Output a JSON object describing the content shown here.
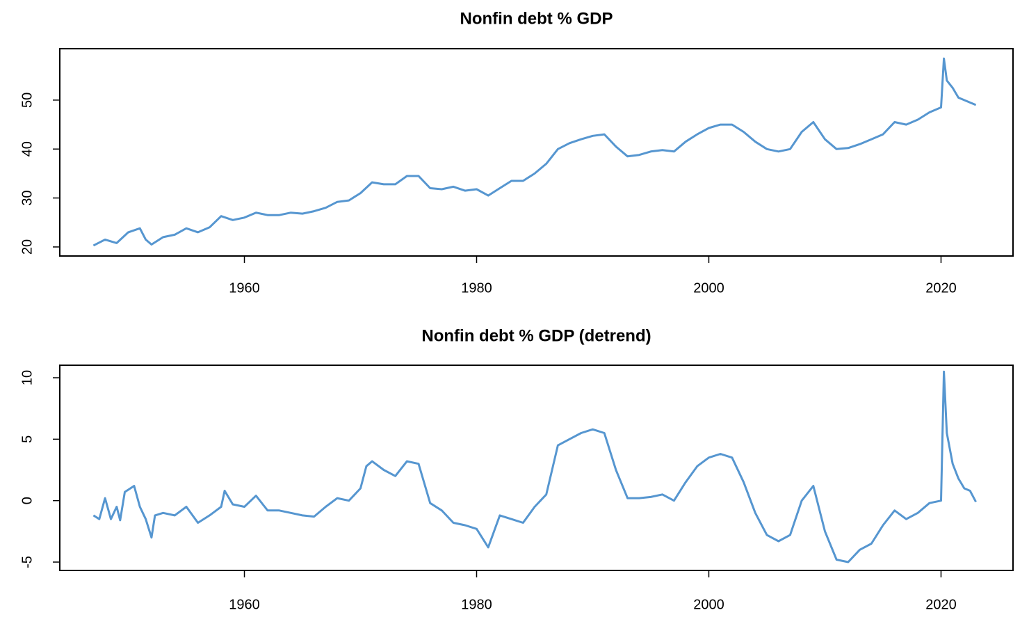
{
  "chart_data": [
    {
      "type": "line",
      "title": "Nonfin debt % GDP",
      "xlim": [
        1944.1,
        2026.2
      ],
      "xticks": [
        1960,
        1980,
        2000,
        2020
      ],
      "ylim": [
        18.15,
        60.5
      ],
      "yticks": [
        20,
        30,
        40,
        50
      ],
      "series": [
        {
          "color": "#5696d0",
          "x": [
            1947,
            1948,
            1949,
            1950,
            1951,
            1951.5,
            1952,
            1953,
            1954,
            1955,
            1956,
            1957,
            1958,
            1959,
            1960,
            1961,
            1962,
            1963,
            1964,
            1965,
            1966,
            1967,
            1968,
            1969,
            1970,
            1971,
            1972,
            1973,
            1974,
            1975,
            1976,
            1977,
            1978,
            1979,
            1980,
            1981,
            1982,
            1983,
            1984,
            1985,
            1986,
            1987,
            1988,
            1989,
            1990,
            1991,
            1992,
            1993,
            1994,
            1995,
            1996,
            1997,
            1998,
            1999,
            2000,
            2001,
            2002,
            2003,
            2004,
            2005,
            2006,
            2007,
            2008,
            2009,
            2010,
            2011,
            2012,
            2013,
            2014,
            2015,
            2016,
            2017,
            2018,
            2019,
            2020,
            2020.25,
            2020.5,
            2021,
            2021.5,
            2022,
            2022.5,
            2023
          ],
          "values": [
            20.3,
            21.5,
            20.8,
            23.0,
            23.8,
            21.5,
            20.5,
            22.0,
            22.5,
            23.8,
            23.0,
            24.0,
            26.3,
            25.5,
            26.0,
            27.0,
            26.5,
            26.5,
            27.0,
            26.8,
            27.3,
            28.0,
            29.2,
            29.5,
            31.0,
            33.2,
            32.8,
            32.8,
            34.5,
            34.5,
            32.0,
            31.8,
            32.3,
            31.5,
            31.8,
            30.5,
            32.0,
            33.5,
            33.5,
            35.0,
            37.0,
            40.0,
            41.2,
            42.0,
            42.7,
            43.0,
            40.5,
            38.5,
            38.8,
            39.5,
            39.8,
            39.5,
            41.5,
            43.0,
            44.3,
            45.0,
            45.0,
            43.5,
            41.5,
            40.0,
            39.5,
            40.0,
            43.5,
            45.5,
            42.0,
            40.0,
            40.2,
            41.0,
            42.0,
            43.0,
            45.5,
            45.0,
            46.0,
            47.5,
            48.5,
            58.5,
            54.0,
            52.5,
            50.5,
            50.0,
            49.5,
            49.0
          ]
        }
      ]
    },
    {
      "type": "line",
      "title": "Nonfin debt % GDP (detrend)",
      "xlim": [
        1944.1,
        2026.2
      ],
      "xticks": [
        1960,
        1980,
        2000,
        2020
      ],
      "ylim": [
        -5.68,
        11.02
      ],
      "yticks": [
        -5,
        0,
        5,
        10
      ],
      "series": [
        {
          "color": "#5696d0",
          "x": [
            1947,
            1947.5,
            1948,
            1948.5,
            1949,
            1949.3,
            1949.7,
            1950.5,
            1951,
            1951.5,
            1952,
            1952.3,
            1953,
            1954,
            1955,
            1956,
            1957,
            1958,
            1958.3,
            1959,
            1960,
            1961,
            1962,
            1963,
            1964,
            1965,
            1966,
            1967,
            1968,
            1969,
            1970,
            1970.5,
            1971,
            1972,
            1973,
            1974,
            1975,
            1976,
            1977,
            1978,
            1979,
            1980,
            1981,
            1982,
            1983,
            1984,
            1985,
            1986,
            1987,
            1988,
            1989,
            1990,
            1991,
            1992,
            1993,
            1994,
            1995,
            1996,
            1997,
            1998,
            1999,
            2000,
            2001,
            2002,
            2003,
            2004,
            2005,
            2006,
            2007,
            2008,
            2009,
            2010,
            2011,
            2012,
            2013,
            2014,
            2015,
            2016,
            2017,
            2018,
            2019,
            2020,
            2020.25,
            2020.5,
            2021,
            2021.5,
            2022,
            2022.5,
            2023
          ],
          "values": [
            -1.2,
            -1.5,
            0.2,
            -1.5,
            -0.5,
            -1.6,
            0.7,
            1.2,
            -0.5,
            -1.5,
            -3.0,
            -1.2,
            -1.0,
            -1.2,
            -0.5,
            -1.8,
            -1.2,
            -0.5,
            0.8,
            -0.3,
            -0.5,
            0.4,
            -0.8,
            -0.8,
            -1.0,
            -1.2,
            -1.3,
            -0.5,
            0.2,
            0.0,
            1.0,
            2.8,
            3.2,
            2.5,
            2.0,
            3.2,
            3.0,
            -0.2,
            -0.8,
            -1.8,
            -2.0,
            -2.3,
            -3.8,
            -1.2,
            -1.5,
            -1.8,
            -0.5,
            0.5,
            4.5,
            5.0,
            5.5,
            5.8,
            5.5,
            2.5,
            0.2,
            0.2,
            0.3,
            0.5,
            0.0,
            1.5,
            2.8,
            3.5,
            3.8,
            3.5,
            1.5,
            -1.0,
            -2.8,
            -3.3,
            -2.8,
            0.0,
            1.2,
            -2.5,
            -4.8,
            -5.0,
            -4.0,
            -3.5,
            -2.0,
            -0.8,
            -1.5,
            -1.0,
            -0.2,
            0.0,
            10.5,
            5.5,
            3.0,
            1.8,
            1.0,
            0.8,
            -0.1
          ]
        }
      ]
    }
  ]
}
